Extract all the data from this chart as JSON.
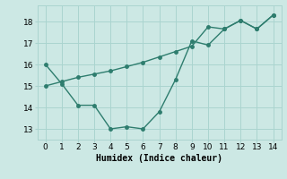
{
  "line1_x": [
    0,
    1,
    2,
    3,
    4,
    5,
    6,
    7,
    8,
    9,
    10,
    11,
    12,
    13,
    14
  ],
  "line1_y": [
    16.0,
    15.1,
    14.1,
    14.1,
    13.0,
    13.1,
    13.0,
    13.8,
    15.3,
    17.1,
    16.9,
    17.65,
    18.05,
    17.65,
    18.3
  ],
  "line2_x": [
    0,
    1,
    2,
    3,
    4,
    5,
    6,
    7,
    8,
    9,
    10,
    11,
    12,
    13,
    14
  ],
  "line2_y": [
    15.0,
    15.2,
    15.4,
    15.55,
    15.7,
    15.9,
    16.1,
    16.35,
    16.6,
    16.85,
    17.75,
    17.65,
    18.05,
    17.65,
    18.3
  ],
  "color": "#2e7d6e",
  "bg_color": "#cce8e4",
  "grid_color": "#aad4cf",
  "xlabel": "Humidex (Indice chaleur)",
  "xlim": [
    -0.5,
    14.5
  ],
  "ylim": [
    12.5,
    18.75
  ],
  "yticks": [
    13,
    14,
    15,
    16,
    17,
    18
  ],
  "xticks": [
    0,
    1,
    2,
    3,
    4,
    5,
    6,
    7,
    8,
    9,
    10,
    11,
    12,
    13,
    14
  ],
  "marker": "o",
  "markersize": 2.5,
  "linewidth": 1.0,
  "xlabel_fontsize": 7,
  "tick_fontsize": 6.5
}
